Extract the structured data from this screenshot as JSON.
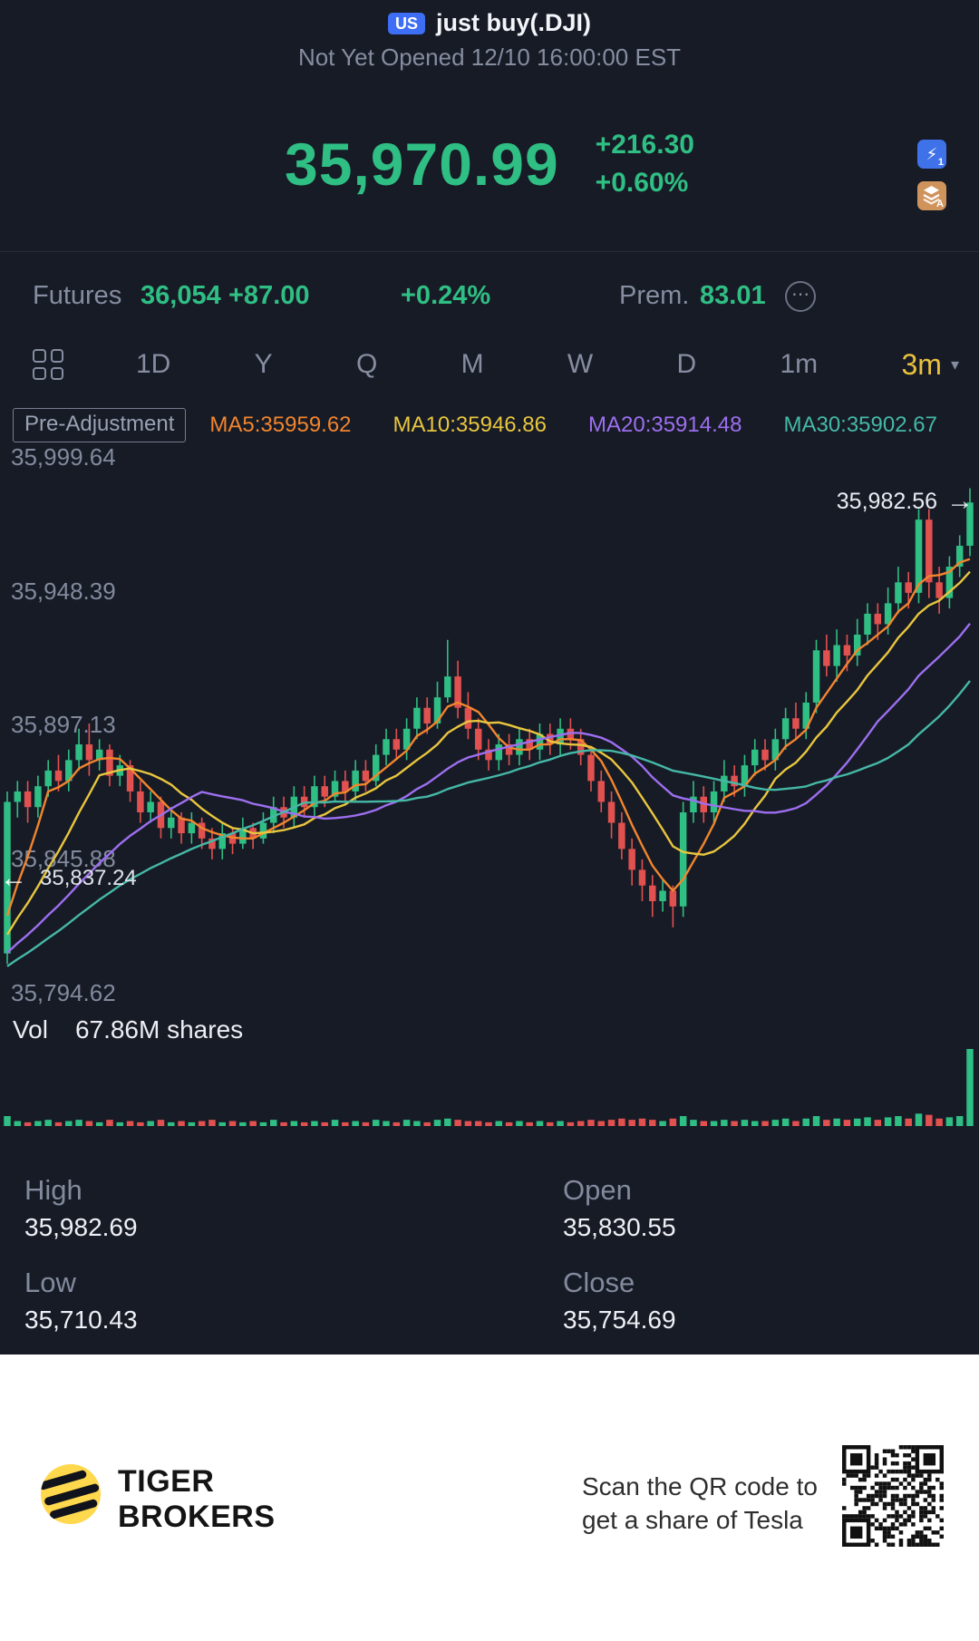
{
  "header": {
    "market_badge": "US",
    "title": "just buy(.DJI)",
    "status_line": "Not Yet Opened 12/10 16:00:00 EST"
  },
  "quote": {
    "price": "35,970.99",
    "change": "+216.30",
    "change_pct": "+0.60%",
    "flash_badge": "1",
    "layers_badge": "A"
  },
  "futures": {
    "label": "Futures",
    "price": "36,054",
    "change": "+87.00",
    "change_pct": "+0.24%",
    "prem_label": "Prem.",
    "prem_value": "83.01",
    "more_icon": "⋯"
  },
  "toolbar": {
    "periods": [
      "1D",
      "Y",
      "Q",
      "M",
      "W",
      "D",
      "1m",
      "3m"
    ],
    "active": "3m",
    "caret": "▾"
  },
  "chart_header": {
    "adjustment_label": "Pre-Adjustment",
    "ma_labels": [
      {
        "text": "MA5:35959.62",
        "color": "#f2852e"
      },
      {
        "text": "MA10:35946.86",
        "color": "#e8c63e"
      },
      {
        "text": "MA20:35914.48",
        "color": "#9d6ff0"
      },
      {
        "text": "MA30:35902.67",
        "color": "#45b8a6"
      }
    ]
  },
  "chart_data": {
    "type": "candlestick",
    "y_axis_labels": [
      "35,999.64",
      "35,948.39",
      "35,897.13",
      "35,845.88",
      "35,794.62"
    ],
    "y_max": 35999.64,
    "y_min": 35794.62,
    "last_price_label": "35,982.56",
    "left_marker_label": "35,837.24",
    "left_marker_value": 35837.24,
    "up_color": "#2fbe83",
    "down_color": "#e0514f",
    "ma_periods": [
      5,
      10,
      20,
      30
    ],
    "ma_colors": [
      "#f2852e",
      "#e8c63e",
      "#9d6ff0",
      "#45b8a6"
    ],
    "ma_seed": {
      "start": 35790,
      "end": 35815,
      "count": 30
    },
    "candles": [
      [
        35810,
        35872,
        35806,
        35868
      ],
      [
        35868,
        35876,
        35862,
        35872
      ],
      [
        35872,
        35876,
        35860,
        35866
      ],
      [
        35866,
        35878,
        35862,
        35874
      ],
      [
        35874,
        35884,
        35870,
        35880
      ],
      [
        35880,
        35886,
        35872,
        35876
      ],
      [
        35876,
        35888,
        35872,
        35884
      ],
      [
        35884,
        35896,
        35880,
        35890
      ],
      [
        35890,
        35898,
        35878,
        35884
      ],
      [
        35884,
        35892,
        35880,
        35888
      ],
      [
        35888,
        35890,
        35874,
        35878
      ],
      [
        35878,
        35886,
        35874,
        35882
      ],
      [
        35882,
        35884,
        35868,
        35872
      ],
      [
        35872,
        35876,
        35860,
        35864
      ],
      [
        35864,
        35872,
        35860,
        35868
      ],
      [
        35868,
        35870,
        35854,
        35858
      ],
      [
        35858,
        35866,
        35854,
        35862
      ],
      [
        35862,
        35864,
        35852,
        35856
      ],
      [
        35856,
        35864,
        35852,
        35860
      ],
      [
        35860,
        35862,
        35850,
        35854
      ],
      [
        35854,
        35858,
        35846,
        35850
      ],
      [
        35850,
        35860,
        35846,
        35856
      ],
      [
        35856,
        35858,
        35848,
        35852
      ],
      [
        35852,
        35862,
        35850,
        35858
      ],
      [
        35858,
        35860,
        35850,
        35854
      ],
      [
        35854,
        35864,
        35852,
        35860
      ],
      [
        35860,
        35870,
        35856,
        35866
      ],
      [
        35866,
        35870,
        35858,
        35862
      ],
      [
        35862,
        35874,
        35858,
        35870
      ],
      [
        35870,
        35874,
        35862,
        35866
      ],
      [
        35866,
        35878,
        35862,
        35874
      ],
      [
        35874,
        35878,
        35866,
        35870
      ],
      [
        35870,
        35880,
        35868,
        35876
      ],
      [
        35876,
        35880,
        35868,
        35872
      ],
      [
        35872,
        35884,
        35868,
        35880
      ],
      [
        35880,
        35884,
        35872,
        35876
      ],
      [
        35876,
        35890,
        35874,
        35886
      ],
      [
        35886,
        35896,
        35882,
        35892
      ],
      [
        35892,
        35896,
        35884,
        35888
      ],
      [
        35888,
        35900,
        35884,
        35896
      ],
      [
        35896,
        35908,
        35892,
        35904
      ],
      [
        35904,
        35908,
        35894,
        35898
      ],
      [
        35898,
        35914,
        35896,
        35908
      ],
      [
        35908,
        35930,
        35906,
        35916
      ],
      [
        35916,
        35922,
        35900,
        35904
      ],
      [
        35904,
        35910,
        35892,
        35896
      ],
      [
        35896,
        35900,
        35884,
        35888
      ],
      [
        35888,
        35892,
        35880,
        35884
      ],
      [
        35884,
        35894,
        35880,
        35890
      ],
      [
        35890,
        35894,
        35882,
        35886
      ],
      [
        35886,
        35896,
        35882,
        35892
      ],
      [
        35892,
        35896,
        35884,
        35888
      ],
      [
        35888,
        35898,
        35884,
        35894
      ],
      [
        35894,
        35898,
        35886,
        35890
      ],
      [
        35890,
        35900,
        35886,
        35896
      ],
      [
        35896,
        35900,
        35888,
        35892
      ],
      [
        35892,
        35896,
        35882,
        35886
      ],
      [
        35886,
        35888,
        35872,
        35876
      ],
      [
        35876,
        35880,
        35864,
        35868
      ],
      [
        35868,
        35872,
        35854,
        35860
      ],
      [
        35860,
        35864,
        35846,
        35850
      ],
      [
        35850,
        35854,
        35836,
        35842
      ],
      [
        35842,
        35846,
        35830,
        35836
      ],
      [
        35836,
        35840,
        35824,
        35830
      ],
      [
        35830,
        35838,
        35826,
        35834
      ],
      [
        35834,
        35836,
        35820,
        35828
      ],
      [
        35828,
        35868,
        35824,
        35864
      ],
      [
        35864,
        35876,
        35860,
        35870
      ],
      [
        35870,
        35874,
        35860,
        35864
      ],
      [
        35864,
        35876,
        35860,
        35872
      ],
      [
        35872,
        35884,
        35868,
        35878
      ],
      [
        35878,
        35882,
        35870,
        35874
      ],
      [
        35874,
        35886,
        35870,
        35882
      ],
      [
        35882,
        35892,
        35878,
        35888
      ],
      [
        35888,
        35892,
        35880,
        35884
      ],
      [
        35884,
        35896,
        35880,
        35892
      ],
      [
        35892,
        35904,
        35888,
        35900
      ],
      [
        35900,
        35906,
        35892,
        35896
      ],
      [
        35896,
        35910,
        35892,
        35906
      ],
      [
        35906,
        35930,
        35902,
        35926
      ],
      [
        35926,
        35932,
        35916,
        35920
      ],
      [
        35920,
        35934,
        35914,
        35928
      ],
      [
        35928,
        35932,
        35918,
        35924
      ],
      [
        35924,
        35938,
        35920,
        35932
      ],
      [
        35932,
        35944,
        35928,
        35940
      ],
      [
        35940,
        35944,
        35930,
        35936
      ],
      [
        35936,
        35950,
        35932,
        35944
      ],
      [
        35944,
        35958,
        35940,
        35952
      ],
      [
        35952,
        35956,
        35942,
        35948
      ],
      [
        35948,
        35980,
        35944,
        35976
      ],
      [
        35976,
        35980,
        35946,
        35952
      ],
      [
        35952,
        35958,
        35940,
        35946
      ],
      [
        35946,
        35962,
        35942,
        35958
      ],
      [
        35958,
        35970,
        35954,
        35966
      ],
      [
        35966,
        35988,
        35962,
        35982.56
      ]
    ],
    "volumes": [
      8,
      4,
      3,
      4,
      5,
      3,
      4,
      5,
      4,
      3,
      5,
      3,
      4,
      3,
      4,
      5,
      3,
      4,
      3,
      4,
      5,
      3,
      4,
      3,
      4,
      3,
      5,
      3,
      4,
      3,
      4,
      3,
      5,
      3,
      4,
      3,
      5,
      4,
      3,
      5,
      4,
      3,
      5,
      6,
      5,
      4,
      4,
      3,
      4,
      3,
      4,
      3,
      4,
      3,
      4,
      3,
      4,
      5,
      4,
      5,
      6,
      5,
      6,
      5,
      4,
      6,
      8,
      5,
      4,
      4,
      5,
      4,
      5,
      4,
      4,
      5,
      6,
      4,
      6,
      8,
      5,
      6,
      5,
      6,
      7,
      5,
      7,
      8,
      6,
      10,
      9,
      6,
      7,
      8,
      62
    ]
  },
  "volume": {
    "label": "Vol",
    "shares": "67.86M shares"
  },
  "stats": {
    "high_label": "High",
    "high": "35,982.69",
    "open_label": "Open",
    "open": "35,830.55",
    "low_label": "Low",
    "low": "35,710.43",
    "close_label": "Close",
    "close": "35,754.69"
  },
  "footer": {
    "brand_line1": "TIGER",
    "brand_line2": "BROKERS",
    "qr_text_line1": "Scan the QR code to",
    "qr_text_line2": "get a share of Tesla"
  }
}
